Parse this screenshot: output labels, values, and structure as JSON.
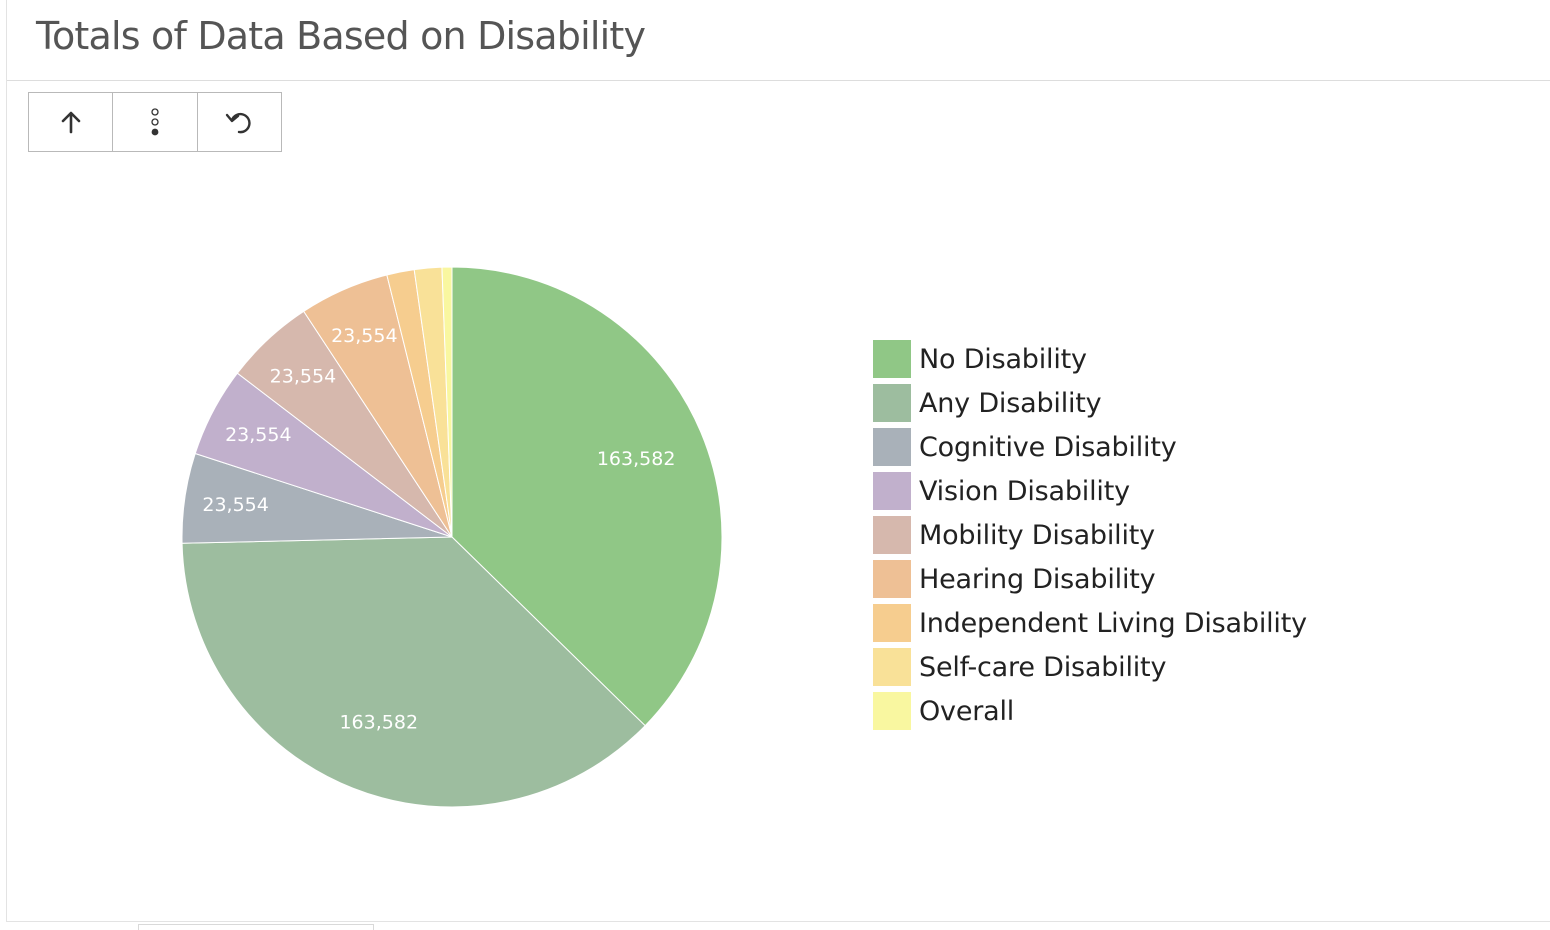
{
  "page": {
    "title": "Totals of Data Based on Disability"
  },
  "toolbar": {
    "buttons": [
      {
        "icon": "arrow-up-icon"
      },
      {
        "icon": "more-vertical-icon"
      },
      {
        "icon": "undo-icon"
      }
    ]
  },
  "chart_data": {
    "type": "pie",
    "title": "Totals of Data Based on Disability",
    "legend_position": "right",
    "slices": [
      {
        "label": "No Disability",
        "value": 163582,
        "value_label": "163,582",
        "color": "#90c786"
      },
      {
        "label": "Any Disability",
        "value": 163582,
        "value_label": "163,582",
        "color": "#9dbd9f"
      },
      {
        "label": "Cognitive Disability",
        "value": 23554,
        "value_label": "23,554",
        "color": "#a9b1b9"
      },
      {
        "label": "Vision Disability",
        "value": 23554,
        "value_label": "23,554",
        "color": "#c1b0cc"
      },
      {
        "label": "Mobility Disability",
        "value": 23554,
        "value_label": "23,554",
        "color": "#d6b8ad"
      },
      {
        "label": "Hearing Disability",
        "value": 23554,
        "value_label": "23,554",
        "color": "#eec095"
      },
      {
        "label": "Independent Living Disability",
        "value": 7200,
        "value_label": "",
        "color": "#f6cd8f"
      },
      {
        "label": "Self-care Disability",
        "value": 7200,
        "value_label": "",
        "color": "#f9e198"
      },
      {
        "label": "Overall",
        "value": 2600,
        "value_label": "",
        "color": "#f9f7a0"
      }
    ]
  }
}
